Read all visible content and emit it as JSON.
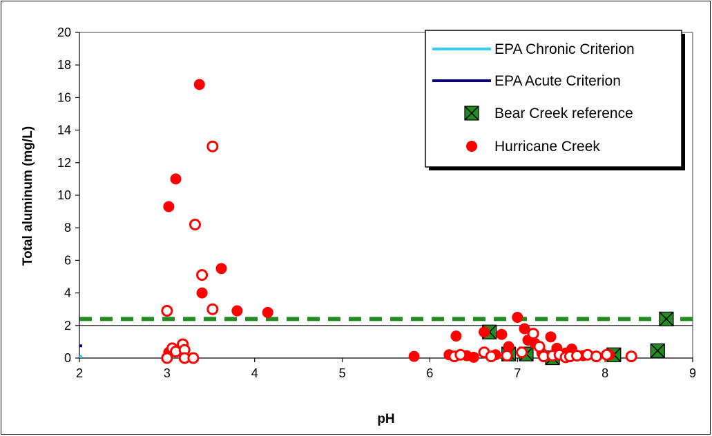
{
  "chart_data": {
    "type": "scatter",
    "xlabel": "pH",
    "ylabel": "Total aluminum (mg/L)",
    "xlim": [
      2,
      9
    ],
    "ylim": [
      0,
      20
    ],
    "x_ticks": [
      "2",
      "3",
      "4",
      "5",
      "6",
      "7",
      "8",
      "9"
    ],
    "y_ticks": [
      "0",
      "2",
      "4",
      "6",
      "8",
      "10",
      "12",
      "14",
      "16",
      "18",
      "20"
    ],
    "grid": false,
    "legend_position": "top-right",
    "reference_lines": [
      {
        "y": 2.4,
        "style": "dashed",
        "color": "#228B22"
      },
      {
        "y": 2.0,
        "style": "solid",
        "color": "#000000"
      }
    ],
    "series": [
      {
        "name": "EPA Chronic Criterion",
        "kind": "line",
        "color": "#33CCFF",
        "points": [
          [
            2,
            0.087
          ]
        ]
      },
      {
        "name": "EPA Acute Criterion",
        "kind": "line",
        "color": "#000080",
        "points": [
          [
            2,
            0.75
          ]
        ]
      },
      {
        "name": "Bear Creek reference",
        "kind": "marker",
        "marker": "square-x",
        "color": "#228B22",
        "points": [
          [
            6.68,
            1.6
          ],
          [
            6.9,
            0.25
          ],
          [
            7.1,
            0.25
          ],
          [
            7.4,
            0.02
          ],
          [
            8.1,
            0.2
          ],
          [
            8.6,
            0.45
          ],
          [
            8.7,
            2.4
          ]
        ]
      },
      {
        "name": "Hurricane Creek",
        "kind": "marker",
        "marker": "circle-filled",
        "color": "#FF0000",
        "points": [
          [
            3.37,
            16.8
          ],
          [
            3.1,
            11.0
          ],
          [
            3.02,
            9.3
          ],
          [
            3.62,
            5.5
          ],
          [
            3.4,
            4.0
          ],
          [
            3.8,
            2.9
          ],
          [
            4.15,
            2.8
          ],
          [
            3.02,
            0.35
          ],
          [
            5.82,
            0.1
          ],
          [
            6.22,
            0.2
          ],
          [
            6.3,
            1.35
          ],
          [
            6.42,
            0.15
          ],
          [
            6.5,
            0.05
          ],
          [
            6.62,
            1.6
          ],
          [
            6.75,
            0.2
          ],
          [
            6.82,
            1.45
          ],
          [
            6.9,
            0.7
          ],
          [
            7.0,
            2.5
          ],
          [
            7.08,
            1.8
          ],
          [
            7.12,
            1.1
          ],
          [
            7.2,
            0.9
          ],
          [
            7.28,
            0.3
          ],
          [
            7.38,
            1.3
          ],
          [
            7.45,
            0.6
          ],
          [
            7.55,
            0.3
          ],
          [
            7.62,
            0.55
          ],
          [
            7.75,
            0.15
          ],
          [
            8.05,
            0.2
          ]
        ]
      },
      {
        "name": "Hurricane Creek (open)",
        "kind": "marker",
        "marker": "circle-open",
        "color": "#FF0000",
        "points": [
          [
            3.52,
            13.0
          ],
          [
            3.32,
            8.2
          ],
          [
            3.4,
            5.1
          ],
          [
            3.52,
            3.0
          ],
          [
            3.0,
            2.9
          ],
          [
            3.06,
            0.6
          ],
          [
            3.1,
            0.4
          ],
          [
            3.18,
            0.85
          ],
          [
            3.2,
            0.5
          ],
          [
            3.0,
            0.0
          ],
          [
            3.2,
            0.0
          ],
          [
            3.3,
            0.0
          ],
          [
            6.28,
            0.1
          ],
          [
            6.35,
            0.2
          ],
          [
            6.62,
            0.35
          ],
          [
            6.7,
            0.1
          ],
          [
            6.88,
            0.15
          ],
          [
            7.05,
            0.35
          ],
          [
            7.18,
            1.5
          ],
          [
            7.25,
            0.7
          ],
          [
            7.3,
            0.1
          ],
          [
            7.4,
            0.15
          ],
          [
            7.48,
            0.2
          ],
          [
            7.55,
            0.05
          ],
          [
            7.6,
            0.1
          ],
          [
            7.68,
            0.15
          ],
          [
            7.8,
            0.2
          ],
          [
            7.9,
            0.1
          ],
          [
            8.02,
            0.2
          ],
          [
            8.3,
            0.1
          ]
        ]
      }
    ]
  }
}
